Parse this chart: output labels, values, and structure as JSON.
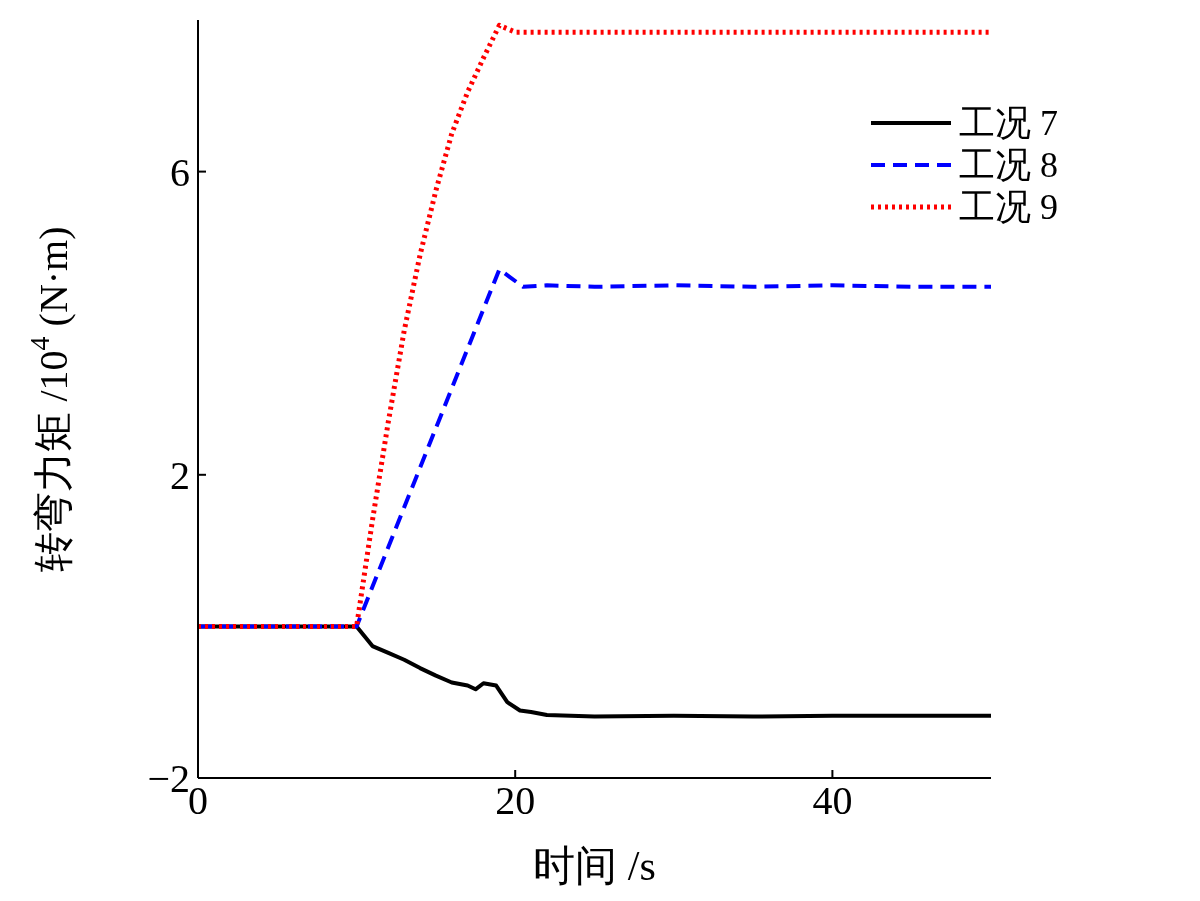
{
  "chart_data": {
    "type": "line",
    "xlabel": "时间 /s",
    "ylabel": "转弯力矩 /10$^{4}$ (N·m)",
    "xlim": [
      0,
      50
    ],
    "xticks": [
      0,
      20,
      40
    ],
    "ylim": [
      -2,
      8
    ],
    "yticks": [
      {
        "value": -2,
        "label": "−2"
      },
      2,
      6
    ],
    "grid": false,
    "legend": "top right",
    "marker": "none",
    "series": [
      {
        "name": "工况 7",
        "color": "#000000",
        "line_style": "solid",
        "x": [
          0,
          10,
          11,
          12,
          13,
          14,
          15,
          16,
          17,
          17.5,
          18,
          18.8,
          19.5,
          20.3,
          21,
          22,
          25,
          30,
          35,
          40,
          45,
          50
        ],
        "values": [
          0,
          0,
          -0.26,
          -0.35,
          -0.44,
          -0.55,
          -0.65,
          -0.74,
          -0.78,
          -0.83,
          -0.75,
          -0.78,
          -1.0,
          -1.11,
          -1.13,
          -1.17,
          -1.19,
          -1.18,
          -1.19,
          -1.18,
          -1.18,
          -1.18
        ]
      },
      {
        "name": "工况 8",
        "color": "#0000ff",
        "line_style": "dashed",
        "x": [
          0,
          10,
          19,
          20.5,
          22,
          25,
          30,
          35,
          40,
          45,
          50
        ],
        "values": [
          0,
          0,
          4.71,
          4.48,
          4.5,
          4.48,
          4.5,
          4.48,
          4.5,
          4.48,
          4.48
        ]
      },
      {
        "name": "工况 9",
        "color": "#ff0000",
        "line_style": "dotted",
        "x": [
          0,
          10,
          11,
          12,
          13,
          14,
          15,
          16,
          17,
          18,
          19,
          20,
          25,
          30,
          40,
          50
        ],
        "values": [
          0,
          0,
          1.4,
          2.7,
          3.9,
          4.9,
          5.75,
          6.5,
          7.05,
          7.5,
          7.93,
          7.84,
          7.84,
          7.84,
          7.84,
          7.84
        ]
      }
    ]
  }
}
